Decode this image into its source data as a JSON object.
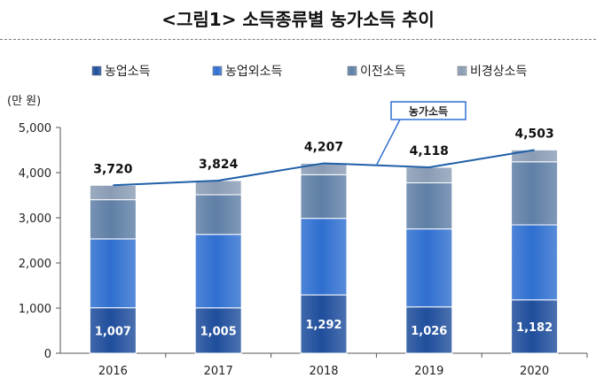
{
  "page": {
    "title": "<그림1> 소득종류별 농가소득 추이"
  },
  "chart_data": {
    "type": "bar",
    "stacked": true,
    "title": "<그림1> 소득종류별 농가소득 추이",
    "ylabel": "(만 원)",
    "xlabel": "",
    "ylim": [
      0,
      5000
    ],
    "yticks": [
      0,
      1000,
      2000,
      3000,
      4000,
      5000
    ],
    "ytick_labels": [
      "0",
      "1,000",
      "2,000",
      "3,000",
      "4,000",
      "5,000"
    ],
    "categories": [
      "2016",
      "2017",
      "2018",
      "2019",
      "2020"
    ],
    "series": [
      {
        "name": "농업소득",
        "values": [
          1007,
          1005,
          1292,
          1026,
          1182
        ],
        "color": "#1f4e9c"
      },
      {
        "name": "농업외소득",
        "values": [
          1525,
          1627,
          1695,
          1727,
          1661
        ],
        "color": "#2f6fd0"
      },
      {
        "name": "이전소득",
        "values": [
          868,
          879,
          967,
          1021,
          1397
        ],
        "color": "#5f7fa6"
      },
      {
        "name": "비경상소득",
        "values": [
          320,
          313,
          253,
          344,
          263
        ],
        "color": "#8a9cb5"
      }
    ],
    "total_line": {
      "name": "농가소득",
      "values": [
        3720,
        3824,
        4207,
        4118,
        4503
      ],
      "labels": [
        "3,720",
        "3,824",
        "4,207",
        "4,118",
        "4,503"
      ],
      "color": "#1f5fa8"
    },
    "bar_value_labels": [
      "1,007",
      "1,005",
      "1,292",
      "1,026",
      "1,182"
    ],
    "callout_label": "농가소득",
    "legend_position": "top",
    "grid": false
  }
}
